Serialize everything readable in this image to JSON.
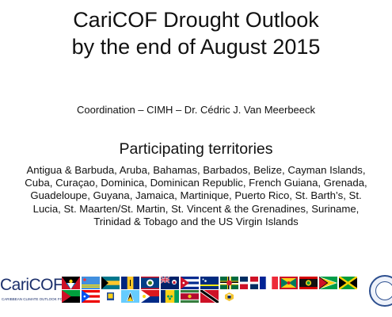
{
  "slide": {
    "title_line1": "CariCOF Drought Outlook",
    "title_line2": "by the end of August 2015",
    "coordination": "Coordination – CIMH – Dr. Cédric J. Van Meerbeeck",
    "participating_heading": "Participating territories",
    "territories_text": "Antigua & Barbuda, Aruba, Bahamas, Barbados, Belize, Cayman Islands, Cuba, Curaçao, Dominica, Dominican Republic, French Guiana, Grenada, Guadeloupe, Guyana, Jamaica, Martinique, Puerto Rico, St. Barth’s, St. Lucia, St. Maarten/St. Martin, St. Vincent & the Grenadines, Suriname, Trinidad & Tobago and the US Virgin Islands"
  },
  "footer": {
    "logo_text": "CariCOF",
    "logo_subtext": "CARIBBEAN CLIMATE OUTLOOK FORUM",
    "flags": [
      "antigua",
      "aruba",
      "bahamas",
      "barbados",
      "belize",
      "cayman",
      "cuba",
      "curacao",
      "dominica",
      "dominican-republic",
      "france",
      "grenada",
      "guadeloupe",
      "guyana",
      "jamaica",
      "martinique",
      "puerto-rico",
      "st-barths",
      "st-lucia",
      "st-maarten",
      "st-vincent",
      "suriname",
      "trinidad",
      "us-virgin-islands"
    ],
    "colors": {
      "logo_blue": "#1b2f6b",
      "seal_blue": "#2d4f8f"
    }
  }
}
